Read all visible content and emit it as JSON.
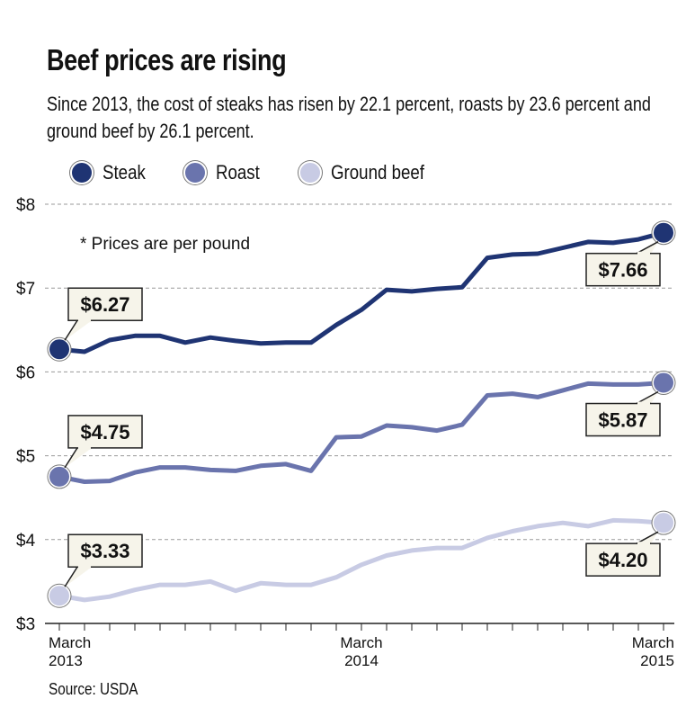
{
  "title": "Beef prices are rising",
  "subtitle": "Since 2013, the cost of steaks has risen by 22.1 percent, roasts by 23.6 percent and ground beef by 26.1 percent.",
  "note": "* Prices are per pound",
  "source": "Source: USDA",
  "legend": [
    {
      "name": "Steak",
      "color": "#1f3473"
    },
    {
      "name": "Roast",
      "color": "#6a74ad"
    },
    {
      "name": "Ground beef",
      "color": "#c8cbe4"
    }
  ],
  "chart_data": {
    "type": "line",
    "x": [
      "2013-03",
      "2013-04",
      "2013-05",
      "2013-06",
      "2013-07",
      "2013-08",
      "2013-09",
      "2013-10",
      "2013-11",
      "2013-12",
      "2014-01",
      "2014-02",
      "2014-03",
      "2014-04",
      "2014-05",
      "2014-06",
      "2014-07",
      "2014-08",
      "2014-09",
      "2014-10",
      "2014-11",
      "2014-12",
      "2015-01",
      "2015-02",
      "2015-03"
    ],
    "x_tick_labels": [
      {
        "x": "2013-03",
        "month": "March",
        "year": "2013"
      },
      {
        "x": "2014-03",
        "month": "March",
        "year": "2014"
      },
      {
        "x": "2015-03",
        "month": "March",
        "year": "2015"
      }
    ],
    "ylim": [
      3,
      8
    ],
    "y_ticks": [
      "$3",
      "$4",
      "$5",
      "$6",
      "$7",
      "$8"
    ],
    "y_tick_values": [
      3,
      4,
      5,
      6,
      7,
      8
    ],
    "grid": "horizontal dashed",
    "series": [
      {
        "name": "Steak",
        "color": "#1f3473",
        "values": [
          6.27,
          6.24,
          6.38,
          6.43,
          6.43,
          6.35,
          6.41,
          6.37,
          6.34,
          6.35,
          6.35,
          6.56,
          6.74,
          6.98,
          6.96,
          6.99,
          7.01,
          7.36,
          7.4,
          7.41,
          7.48,
          7.55,
          7.54,
          7.58,
          7.66
        ],
        "start_label": "$6.27",
        "end_label": "$7.66"
      },
      {
        "name": "Roast",
        "color": "#6a74ad",
        "values": [
          4.75,
          4.69,
          4.7,
          4.8,
          4.86,
          4.86,
          4.83,
          4.82,
          4.88,
          4.9,
          4.82,
          5.22,
          5.23,
          5.36,
          5.34,
          5.3,
          5.37,
          5.72,
          5.74,
          5.7,
          5.78,
          5.86,
          5.85,
          5.85,
          5.87
        ],
        "start_label": "$4.75",
        "end_label": "$5.87"
      },
      {
        "name": "Ground beef",
        "color": "#c8cbe4",
        "values": [
          3.33,
          3.28,
          3.32,
          3.4,
          3.46,
          3.46,
          3.5,
          3.39,
          3.48,
          3.46,
          3.46,
          3.55,
          3.7,
          3.81,
          3.87,
          3.9,
          3.9,
          4.02,
          4.1,
          4.16,
          4.2,
          4.16,
          4.23,
          4.22,
          4.2
        ],
        "start_label": "$3.33",
        "end_label": "$4.20"
      }
    ]
  }
}
